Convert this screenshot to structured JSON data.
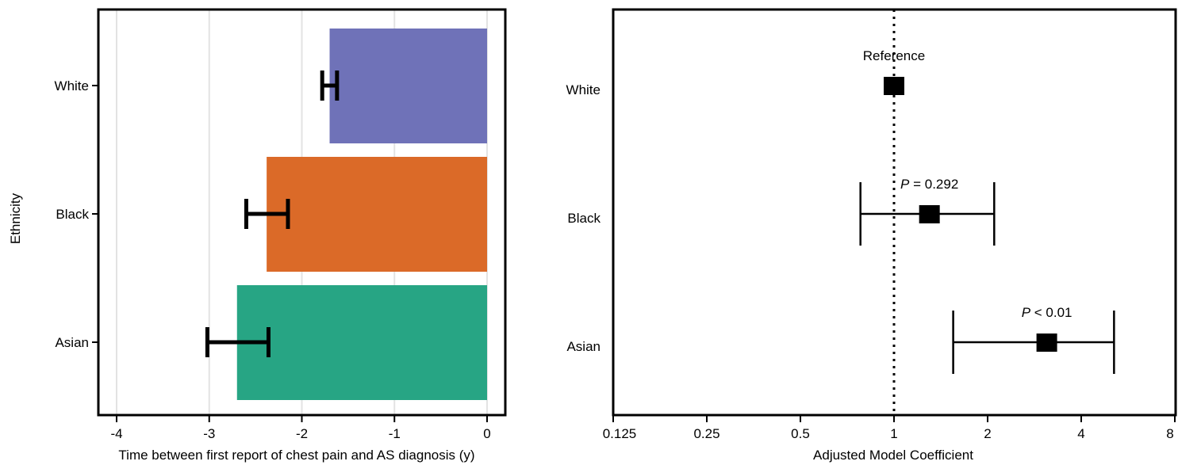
{
  "chart_data": [
    {
      "type": "bar",
      "orientation": "horizontal",
      "ylabel": "Ethnicity",
      "xlabel": "Time between first report of chest pain and AS diagnosis (y)",
      "xlim": [
        -4.2,
        0.2
      ],
      "xticks": [
        -4,
        -3,
        -2,
        -1,
        0
      ],
      "xtick_labels": [
        "-4",
        "-3",
        "-2",
        "-1",
        "0"
      ],
      "grid": "vertical",
      "categories": [
        "White",
        "Black",
        "Asian"
      ],
      "values": [
        -1.7,
        -2.38,
        -2.7
      ],
      "error_low": [
        -1.78,
        -2.6,
        -3.02
      ],
      "error_high": [
        -1.62,
        -2.15,
        -2.36
      ],
      "colors": [
        "#6f72b8",
        "#db6a28",
        "#27a584"
      ]
    },
    {
      "type": "forest",
      "xlabel": "Adjusted Model Coefficient",
      "x_scale": "log2",
      "xlim": [
        0.125,
        8
      ],
      "xticks": [
        0.125,
        0.25,
        0.5,
        1,
        2,
        4,
        8
      ],
      "xtick_labels": [
        "0.125",
        "0.25",
        "0.5",
        "1",
        "2",
        "4",
        "8"
      ],
      "reference_line": 1,
      "categories": [
        "White",
        "Black",
        "Asian"
      ],
      "estimates": [
        1.0,
        1.3,
        3.1
      ],
      "ci_low": [
        null,
        0.78,
        1.55
      ],
      "ci_high": [
        null,
        2.1,
        5.1
      ],
      "annotations": [
        {
          "italic": "",
          "rest": "Reference"
        },
        {
          "italic": "P",
          "rest": " = 0.292"
        },
        {
          "italic": "P",
          "rest": " < 0.01"
        }
      ]
    }
  ]
}
